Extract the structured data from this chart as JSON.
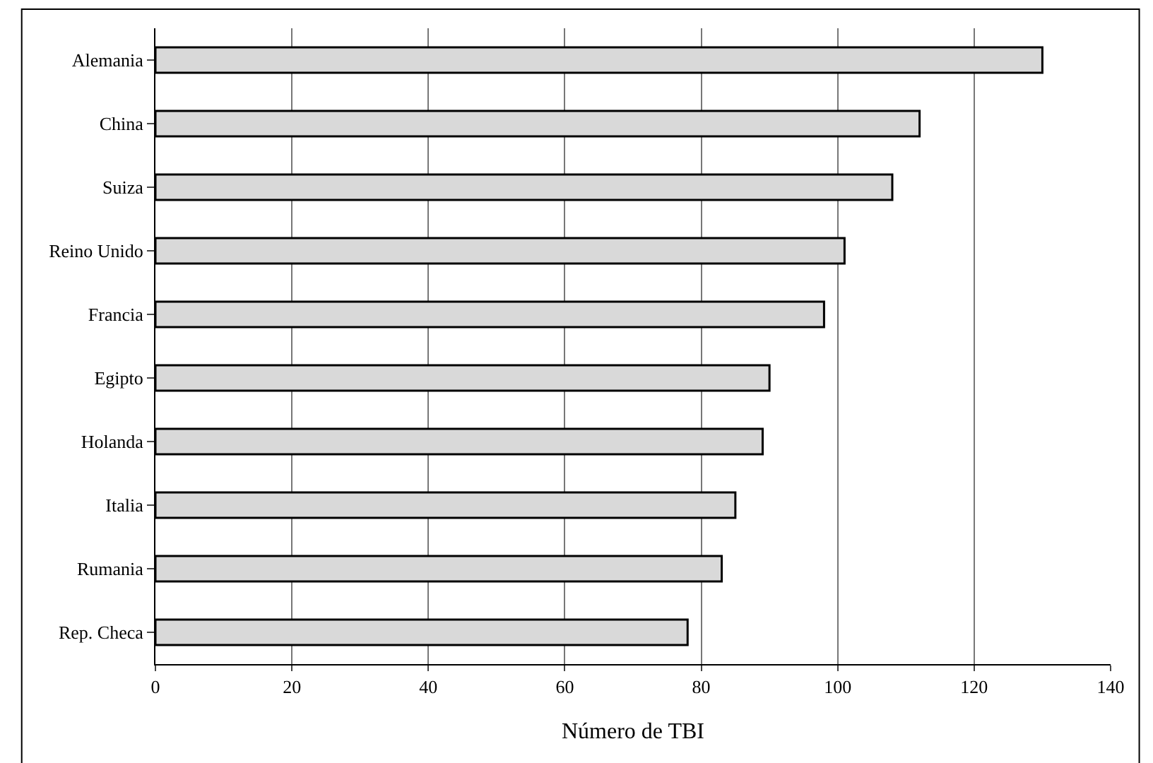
{
  "chart_data": {
    "type": "bar",
    "orientation": "horizontal",
    "xlabel": "Número de TBI",
    "categories": [
      "Alemania",
      "China",
      "Suiza",
      "Reino Unido",
      "Francia",
      "Egipto",
      "Holanda",
      "Italia",
      "Rumania",
      "Rep. Checa"
    ],
    "values": [
      130,
      112,
      108,
      101,
      98,
      90,
      89,
      85,
      83,
      78
    ],
    "color": "#d9d9d9",
    "xlim": [
      0,
      140
    ],
    "xticks": [
      0,
      20,
      40,
      60,
      80,
      100,
      120,
      140
    ],
    "grid": "x"
  }
}
